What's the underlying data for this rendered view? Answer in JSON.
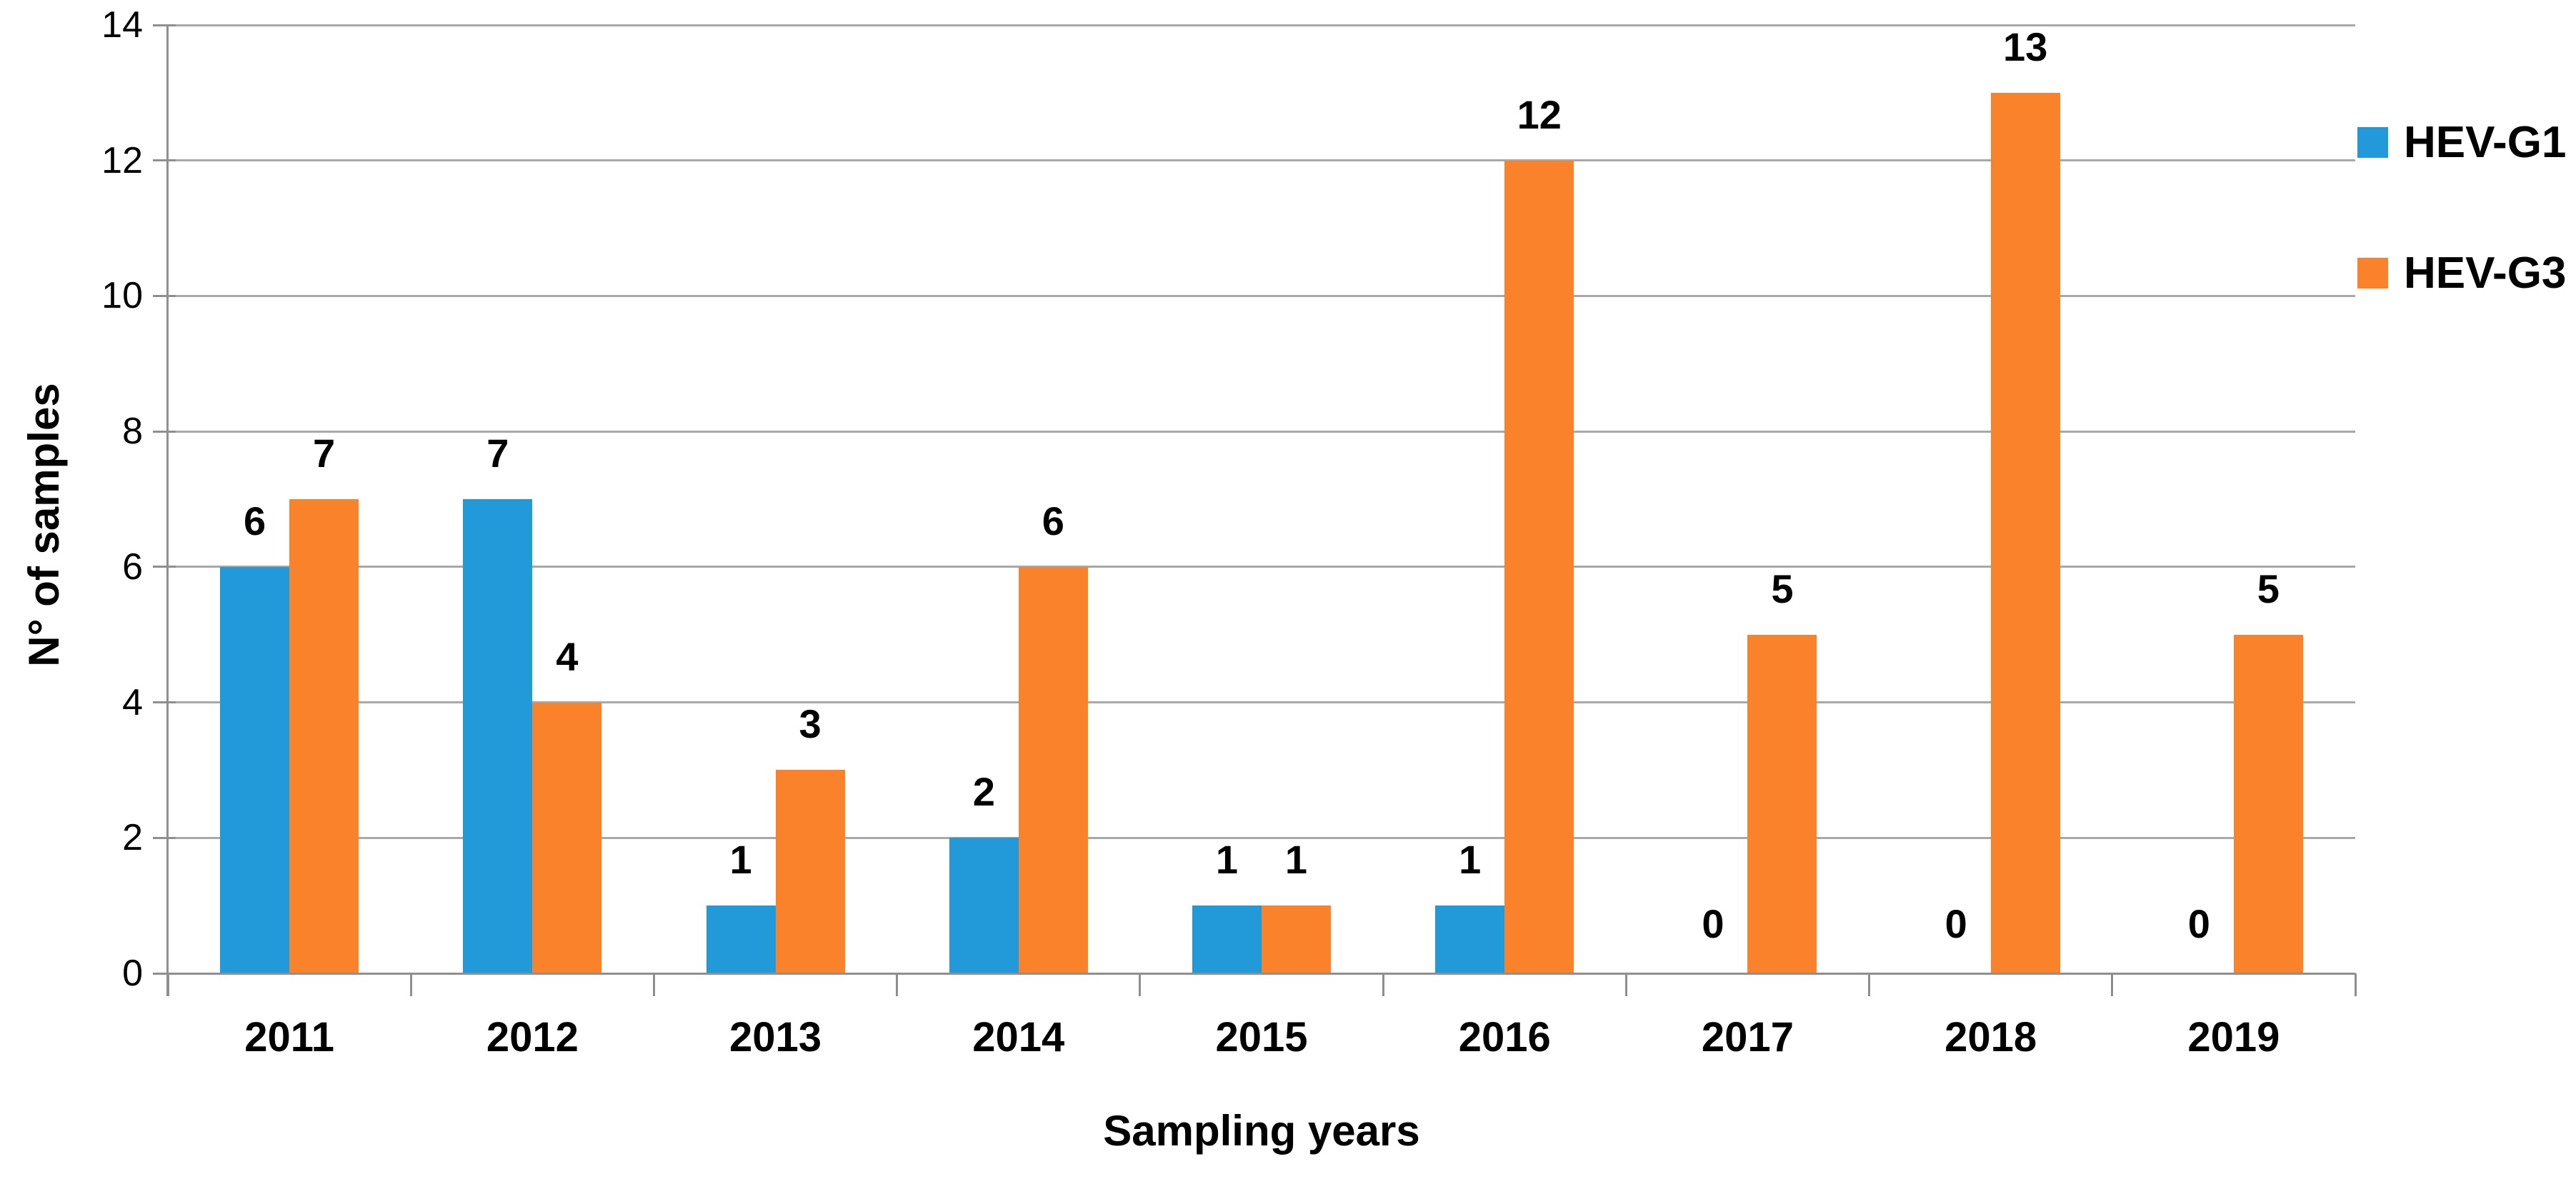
{
  "chart_data": {
    "type": "bar",
    "title": "",
    "categories": [
      "2011",
      "2012",
      "2013",
      "2014",
      "2015",
      "2016",
      "2017",
      "2018",
      "2019"
    ],
    "series": [
      {
        "name": "HEV-G1",
        "color": "#2299D9",
        "values": [
          6,
          7,
          1,
          2,
          1,
          1,
          0,
          0,
          0
        ]
      },
      {
        "name": "HEV-G3",
        "color": "#F9822A",
        "values": [
          7,
          4,
          3,
          6,
          1,
          12,
          5,
          13,
          5
        ]
      }
    ],
    "xlabel": "Sampling years",
    "ylabel": "N° of samples",
    "ylim": [
      0,
      14
    ],
    "yticks": [
      "0",
      "2",
      "4",
      "6",
      "8",
      "10",
      "12",
      "14"
    ],
    "grid": true,
    "data_labels": true,
    "legend_position": "right"
  },
  "colors": {
    "background": "#FFFFFF",
    "gridline": "#A8A8A8",
    "axis": "#8F8F8F",
    "text": "#000000"
  }
}
